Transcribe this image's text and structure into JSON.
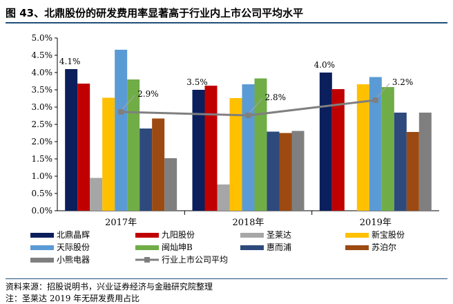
{
  "page": {
    "title": "图 43、北鼎股份的研发费用率显著高于行业内上市公司平均水平",
    "source": "资料来源：招股说明书，兴业证券经济与金融研究院整理",
    "note": "注：圣莱达 2019 年无研发费用占比"
  },
  "chart_data": {
    "type": "bar",
    "categories": [
      "2017年",
      "2018年",
      "2019年"
    ],
    "ylim": [
      0,
      5
    ],
    "yticks": [
      "0.0%",
      "0.5%",
      "1.0%",
      "1.5%",
      "2.0%",
      "2.5%",
      "3.0%",
      "3.5%",
      "4.0%",
      "4.5%",
      "5.0%"
    ],
    "series": [
      {
        "name": "北鼎晶辉",
        "color": "#0b1f5c",
        "values": [
          4.1,
          3.5,
          4.0
        ],
        "labels": [
          "4.1%",
          "3.5%",
          "4.0%"
        ]
      },
      {
        "name": "九阳股份",
        "color": "#c00000",
        "values": [
          3.68,
          3.62,
          3.52
        ]
      },
      {
        "name": "圣莱达",
        "color": "#a6a6a6",
        "values": [
          0.95,
          0.76,
          null
        ]
      },
      {
        "name": "新宝股份",
        "color": "#ffc000",
        "values": [
          3.27,
          3.26,
          3.66
        ]
      },
      {
        "name": "天际股份",
        "color": "#5b9bd5",
        "values": [
          4.66,
          3.66,
          3.87
        ]
      },
      {
        "name": "闽灿坤B",
        "color": "#70ad47",
        "values": [
          3.8,
          3.83,
          3.58
        ]
      },
      {
        "name": "惠而浦",
        "color": "#2e4a7d",
        "values": [
          2.38,
          2.29,
          2.84
        ]
      },
      {
        "name": "苏泊尔",
        "color": "#9c4a12",
        "values": [
          2.67,
          2.25,
          2.28
        ]
      },
      {
        "name": "小熊电器",
        "color": "#7f7f7f",
        "values": [
          1.52,
          2.31,
          2.84
        ]
      }
    ],
    "line": {
      "name": "行业上市公司平均",
      "color": "#7f7f7f",
      "values": [
        2.86,
        2.76,
        3.2
      ],
      "labels": [
        "2.9%",
        "2.8%",
        "3.2%"
      ]
    }
  }
}
